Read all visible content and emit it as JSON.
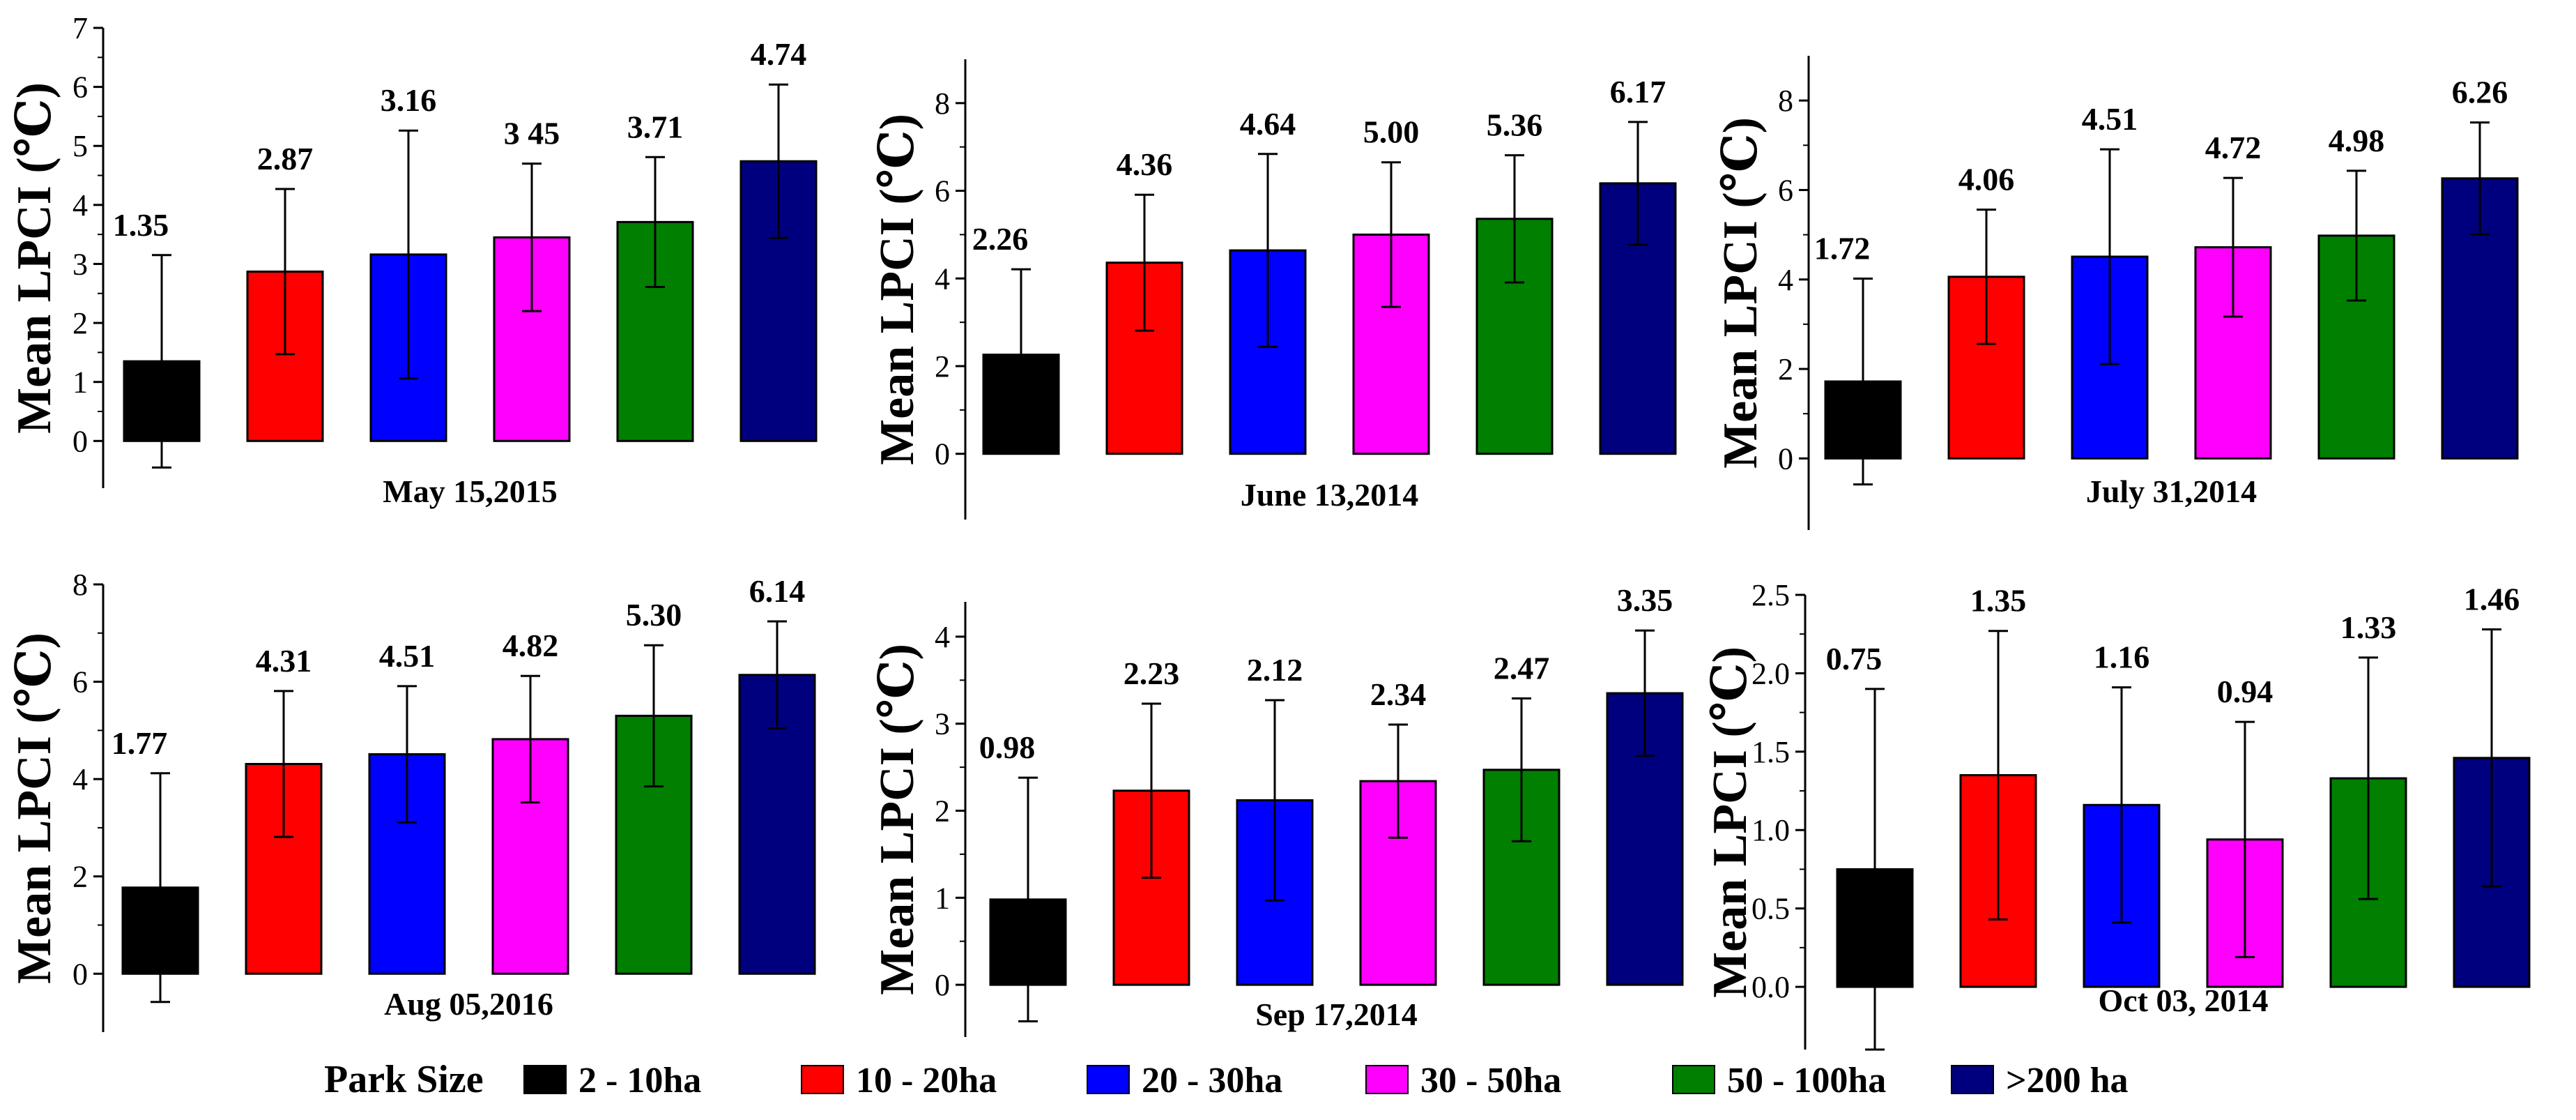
{
  "colors": {
    "2 - 10ha": "#000000",
    "10 - 20ha": "#ff0000",
    "20 - 30ha": "#0000ff",
    "30 - 50ha": "#ff00ff",
    "50 - 100ha": "#007f00",
    ">200 ha": "#00007f"
  },
  "legend": {
    "title": "Park Size",
    "items": [
      "2 - 10ha",
      "10 - 20ha",
      "20 - 30ha",
      "30 - 50ha",
      "50 - 100ha",
      ">200 ha"
    ]
  },
  "chart_data": [
    {
      "type": "bar",
      "title": "May 15,2015",
      "xlabel": "May 15,2015",
      "ylabel": "Mean LPCI (℃)",
      "categories": [
        "2 - 10ha",
        "10 - 20ha",
        "20 - 30ha",
        "30 - 50ha",
        "50 - 100ha",
        ">200 ha"
      ],
      "values": [
        1.35,
        2.87,
        3.16,
        3.45,
        3.71,
        4.74
      ],
      "errors": [
        1.8,
        1.4,
        2.1,
        1.25,
        1.1,
        1.3
      ],
      "labels": [
        "1.35",
        "2.87",
        "3.16",
        "3 45",
        "3.71",
        "4.74"
      ],
      "ylim": [
        -0.8,
        7
      ],
      "yticks": [
        0,
        1,
        2,
        3,
        4,
        5,
        6,
        7
      ],
      "decimals": 0
    },
    {
      "type": "bar",
      "title": "June 13,2014",
      "xlabel": "June 13,2014",
      "ylabel": "Mean LPCI (℃)",
      "categories": [
        "2 - 10ha",
        "10 - 20ha",
        "20 - 30ha",
        "30 - 50ha",
        "50 - 100ha",
        ">200 ha"
      ],
      "values": [
        2.26,
        4.36,
        4.64,
        5.0,
        5.36,
        6.17
      ],
      "errors": [
        1.95,
        1.55,
        2.2,
        1.65,
        1.45,
        1.4
      ],
      "labels": [
        "2.26",
        "4.36",
        "4.64",
        "5.00",
        "5.36",
        "6.17"
      ],
      "ylim": [
        -1.5,
        9
      ],
      "yticks": [
        0,
        2,
        4,
        6,
        8
      ],
      "decimals": 0
    },
    {
      "type": "bar",
      "title": "July 31,2014",
      "xlabel": "July 31,2014",
      "ylabel": "Mean LPCI (℃)",
      "categories": [
        "2 - 10ha",
        "10 - 20ha",
        "20 - 30ha",
        "30 - 50ha",
        "50 - 100ha",
        ">200 ha"
      ],
      "values": [
        1.72,
        4.06,
        4.51,
        4.72,
        4.98,
        6.26
      ],
      "errors": [
        2.3,
        1.5,
        2.4,
        1.55,
        1.45,
        1.25
      ],
      "labels": [
        "1.72",
        "4.06",
        "4.51",
        "4.72",
        "4.98",
        "6.26"
      ],
      "ylim": [
        -1.6,
        9
      ],
      "yticks": [
        0,
        2,
        4,
        6,
        8
      ],
      "decimals": 0
    },
    {
      "type": "bar",
      "title": "Aug 05,2016",
      "xlabel": "Aug 05,2016",
      "ylabel": "Mean LPCI (℃)",
      "categories": [
        "2 - 10ha",
        "10 - 20ha",
        "20 - 30ha",
        "30 - 50ha",
        "50 - 100ha",
        ">200 ha"
      ],
      "values": [
        1.77,
        4.31,
        4.51,
        4.82,
        5.3,
        6.14
      ],
      "errors": [
        2.35,
        1.5,
        1.4,
        1.3,
        1.45,
        1.1
      ],
      "labels": [
        "1.77",
        "4.31",
        "4.51",
        "4.82",
        "5.30",
        "6.14"
      ],
      "ylim": [
        -1.2,
        8
      ],
      "yticks": [
        0,
        2,
        4,
        6,
        8
      ],
      "decimals": 0
    },
    {
      "type": "bar",
      "title": "Sep 17,2014",
      "xlabel": "Sep 17,2014",
      "ylabel": "Mean LPCI (℃)",
      "categories": [
        "2 - 10ha",
        "10 - 20ha",
        "20 - 30ha",
        "30 - 50ha",
        "50 - 100ha",
        ">200 ha"
      ],
      "values": [
        0.98,
        2.23,
        2.12,
        2.34,
        2.47,
        3.35
      ],
      "errors": [
        1.4,
        1.0,
        1.15,
        0.65,
        0.82,
        0.72
      ],
      "labels": [
        "0.98",
        "2.23",
        "2.12",
        "2.34",
        "2.47",
        "3.35"
      ],
      "ylim": [
        -0.6,
        4.4
      ],
      "yticks": [
        0,
        1,
        2,
        3,
        4
      ],
      "decimals": 0
    },
    {
      "type": "bar",
      "title": "Oct 03, 2014",
      "xlabel": "Oct 03, 2014",
      "ylabel": "Mean LPCI (℃)",
      "categories": [
        "2 - 10ha",
        "10 - 20ha",
        "20 - 30ha",
        "30 - 50ha",
        "50 - 100ha",
        ">200 ha"
      ],
      "values": [
        0.75,
        1.35,
        1.16,
        0.94,
        1.33,
        1.46
      ],
      "errors": [
        1.15,
        0.92,
        0.75,
        0.75,
        0.77,
        0.82
      ],
      "labels": [
        "0.75",
        "1.35",
        "1.16",
        "0.94",
        "1.33",
        "1.46"
      ],
      "ylim": [
        -0.4,
        2.5
      ],
      "yticks": [
        0.0,
        0.5,
        1.0,
        1.5,
        2.0,
        2.5
      ],
      "decimals": 1
    }
  ]
}
